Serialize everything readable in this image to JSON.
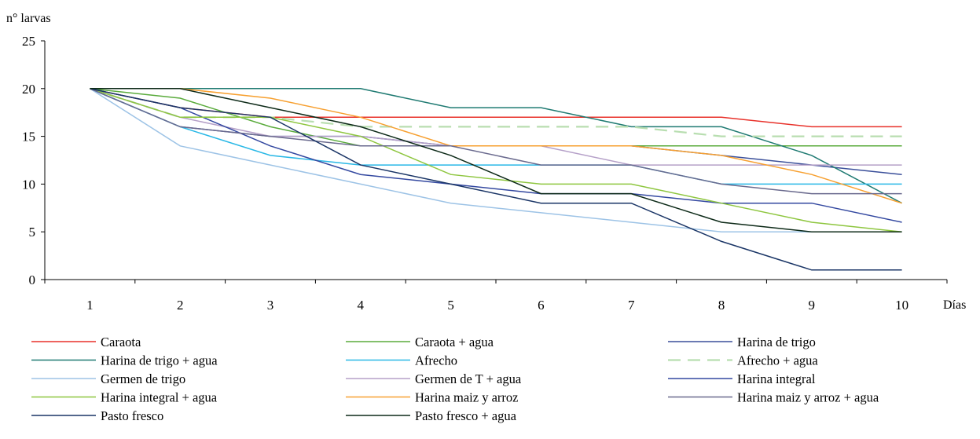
{
  "chart_data": {
    "type": "line",
    "title": "",
    "ylabel": "n° larvas",
    "xlabel": "Días",
    "ylim": [
      0,
      25
    ],
    "yticks": [
      0,
      5,
      10,
      15,
      20,
      25
    ],
    "x": [
      1,
      2,
      3,
      4,
      5,
      6,
      7,
      8,
      9,
      10
    ],
    "x_tick_labels": [
      "1",
      "2",
      "3",
      "4",
      "5",
      "6",
      "7",
      "8",
      "9",
      "10"
    ],
    "grid": false,
    "legend_position": "bottom",
    "series": [
      {
        "name": "Caraota",
        "color": "#e8312a",
        "dash": "solid",
        "values": [
          20,
          18,
          17,
          17,
          17,
          17,
          17,
          17,
          16,
          16
        ]
      },
      {
        "name": "Caraota + agua",
        "color": "#5aab3c",
        "dash": "solid",
        "values": [
          20,
          19,
          16,
          14,
          14,
          14,
          14,
          14,
          14,
          14
        ]
      },
      {
        "name": "Harina de trigo",
        "color": "#3a4f9a",
        "dash": "solid",
        "values": [
          20,
          16,
          15,
          15,
          14,
          14,
          14,
          13,
          12,
          11
        ]
      },
      {
        "name": "Harina de trigo + agua",
        "color": "#1f7a72",
        "dash": "solid",
        "values": [
          20,
          20,
          20,
          20,
          18,
          18,
          16,
          16,
          13,
          8
        ]
      },
      {
        "name": "Afrecho",
        "color": "#29b8e6",
        "dash": "solid",
        "values": [
          20,
          16,
          13,
          12,
          12,
          12,
          12,
          10,
          10,
          10
        ]
      },
      {
        "name": "Afrecho + agua",
        "color": "#b8deb0",
        "dash": "dashed",
        "values": [
          20,
          17,
          17,
          16,
          16,
          16,
          16,
          15,
          15,
          15
        ]
      },
      {
        "name": "Germen de trigo",
        "color": "#9dc3e6",
        "dash": "solid",
        "values": [
          20,
          14,
          12,
          10,
          8,
          7,
          6,
          5,
          5,
          5
        ]
      },
      {
        "name": "Germen de T + agua",
        "color": "#b5a0c8",
        "dash": "solid",
        "values": [
          20,
          17,
          15,
          15,
          14,
          14,
          12,
          12,
          12,
          12
        ]
      },
      {
        "name": "Harina integral",
        "color": "#3348a0",
        "dash": "solid",
        "values": [
          20,
          18,
          14,
          11,
          10,
          9,
          9,
          8,
          8,
          6
        ]
      },
      {
        "name": "Harina integral + agua",
        "color": "#8ec63f",
        "dash": "solid",
        "values": [
          20,
          17,
          17,
          15,
          11,
          10,
          10,
          8,
          6,
          5
        ]
      },
      {
        "name": "Harina maiz y arroz",
        "color": "#f7a030",
        "dash": "solid",
        "values": [
          20,
          20,
          19,
          17,
          14,
          14,
          14,
          13,
          11,
          8
        ]
      },
      {
        "name": "Harina maiz y arroz + agua",
        "color": "#6a6a8e",
        "dash": "solid",
        "values": [
          20,
          16,
          15,
          14,
          14,
          12,
          12,
          10,
          9,
          9
        ]
      },
      {
        "name": "Pasto fresco",
        "color": "#1a3566",
        "dash": "solid",
        "values": [
          20,
          18,
          17,
          12,
          10,
          8,
          8,
          4,
          1,
          1
        ]
      },
      {
        "name": "Pasto fresco + agua",
        "color": "#0d2a18",
        "dash": "solid",
        "values": [
          20,
          20,
          18,
          16,
          13,
          9,
          9,
          6,
          5,
          5
        ]
      }
    ]
  }
}
